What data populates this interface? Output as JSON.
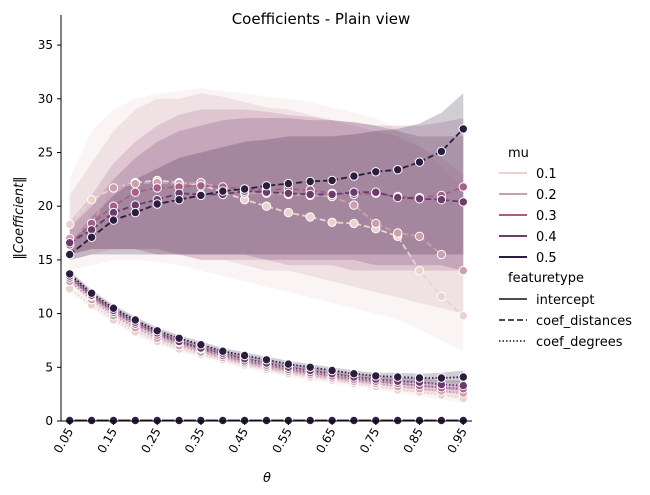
{
  "chart_data": {
    "type": "line",
    "title": "Coefficients - Plain view",
    "xlabel": "θ",
    "ylabel": "‖Coefficient‖",
    "x": [
      0.05,
      0.1,
      0.15,
      0.2,
      0.25,
      0.3,
      0.35,
      0.4,
      0.45,
      0.5,
      0.55,
      0.6,
      0.65,
      0.7,
      0.75,
      0.8,
      0.85,
      0.9,
      0.95
    ],
    "xticks": [
      "0.05",
      "0.15",
      "0.25",
      "0.35",
      "0.45",
      "0.55",
      "0.65",
      "0.75",
      "0.85",
      "0.95"
    ],
    "ylim": [
      0,
      37.8
    ],
    "yticks": [
      "0",
      "5",
      "10",
      "15",
      "20",
      "25",
      "30",
      "35"
    ],
    "grid": false,
    "legend": {
      "position": "right",
      "hue_title": "mu",
      "hue_labels": [
        "0.1",
        "0.2",
        "0.3",
        "0.4",
        "0.5"
      ],
      "hue_colors": [
        "#ead3ce",
        "#cc9fae",
        "#a65f87",
        "#6c3b6e",
        "#2c1d40"
      ],
      "style_title": "featuretype",
      "style_labels": [
        "intercept",
        "coef_distances",
        "coef_degrees"
      ]
    },
    "series": [
      {
        "mu": "0.1",
        "feature": "coef_distances",
        "values": [
          18.3,
          20.6,
          21.7,
          22.2,
          22.4,
          22.2,
          22.0,
          21.3,
          20.6,
          20.0,
          19.4,
          19.0,
          18.5,
          18.4,
          17.9,
          17.2,
          14.0,
          11.6,
          9.8
        ],
        "ci_low": [
          14.0,
          14.5,
          15.0,
          15.0,
          14.8,
          14.5,
          14.0,
          13.5,
          13.0,
          12.5,
          12.0,
          11.5,
          11.0,
          10.5,
          10.0,
          9.5,
          8.5,
          7.5,
          6.5
        ],
        "ci_high": [
          22.5,
          27.0,
          29.0,
          30.0,
          30.5,
          30.7,
          31.0,
          30.7,
          30.5,
          30.2,
          30.0,
          29.7,
          29.2,
          28.7,
          28.2,
          27.2,
          25.7,
          23.7,
          21.7
        ]
      },
      {
        "mu": "0.2",
        "feature": "coef_distances",
        "values": [
          17.0,
          18.4,
          21.7,
          22.1,
          22.2,
          22.1,
          22.2,
          21.7,
          21.2,
          21.2,
          21.1,
          21.0,
          20.9,
          20.1,
          18.4,
          17.5,
          17.2,
          15.5,
          14.0
        ],
        "ci_low": [
          15.0,
          15.5,
          16.0,
          16.0,
          15.5,
          15.5,
          15.0,
          15.0,
          14.5,
          14.0,
          14.0,
          13.5,
          13.0,
          12.5,
          12.0,
          11.5,
          11.0,
          10.5,
          10.0
        ],
        "ci_high": [
          21.0,
          24.0,
          27.0,
          29.0,
          30.0,
          30.0,
          30.5,
          30.2,
          29.7,
          29.2,
          29.0,
          28.5,
          28.0,
          27.5,
          27.0,
          26.5,
          25.5,
          24.5,
          23.0
        ]
      },
      {
        "mu": "0.3",
        "feature": "coef_distances",
        "values": [
          16.4,
          18.4,
          20.0,
          21.3,
          21.7,
          21.8,
          21.9,
          21.8,
          21.6,
          21.5,
          21.6,
          21.5,
          21.2,
          21.1,
          21.2,
          20.9,
          20.8,
          21.0,
          21.8
        ],
        "ci_low": [
          15.5,
          16.0,
          16.0,
          16.0,
          15.5,
          15.5,
          15.0,
          15.0,
          15.0,
          15.0,
          14.5,
          14.5,
          14.5,
          14.0,
          14.0,
          14.0,
          14.0,
          14.0,
          14.0
        ],
        "ci_high": [
          18.5,
          21.0,
          24.0,
          26.0,
          27.5,
          28.5,
          29.0,
          29.0,
          29.0,
          28.8,
          28.5,
          28.3,
          28.0,
          27.8,
          27.5,
          27.5,
          27.5,
          27.8,
          28.2
        ]
      },
      {
        "mu": "0.4",
        "feature": "coef_distances",
        "values": [
          16.6,
          17.8,
          19.4,
          20.1,
          20.6,
          21.2,
          21.1,
          21.1,
          21.4,
          21.3,
          21.2,
          21.1,
          21.1,
          21.3,
          21.3,
          20.8,
          20.7,
          20.6,
          20.4
        ],
        "ci_low": [
          15.5,
          16.0,
          16.0,
          16.0,
          16.0,
          15.5,
          15.5,
          15.5,
          15.5,
          15.0,
          15.0,
          15.0,
          15.0,
          15.0,
          14.5,
          14.5,
          14.5,
          14.5,
          14.0
        ],
        "ci_high": [
          18.0,
          20.0,
          22.5,
          24.5,
          26.0,
          27.0,
          27.5,
          28.0,
          28.2,
          28.2,
          28.2,
          28.0,
          28.0,
          27.8,
          27.5,
          27.0,
          26.5,
          26.5,
          26.5
        ]
      },
      {
        "mu": "0.5",
        "feature": "coef_distances",
        "values": [
          15.5,
          17.1,
          18.7,
          19.4,
          20.2,
          20.6,
          21.0,
          21.4,
          21.6,
          21.9,
          22.1,
          22.3,
          22.4,
          22.8,
          23.2,
          23.4,
          24.1,
          25.1,
          27.2
        ],
        "ci_low": [
          15.0,
          15.5,
          15.5,
          15.5,
          15.5,
          15.5,
          15.5,
          15.5,
          15.5,
          15.5,
          15.5,
          15.5,
          15.5,
          15.5,
          15.5,
          15.5,
          15.5,
          15.5,
          15.5
        ],
        "ci_high": [
          16.5,
          19.0,
          21.0,
          22.5,
          23.5,
          24.5,
          25.0,
          25.5,
          26.0,
          26.2,
          26.5,
          26.5,
          26.5,
          26.7,
          27.0,
          27.2,
          27.7,
          28.7,
          30.5
        ]
      },
      {
        "mu": "0.1",
        "feature": "coef_degrees",
        "values": [
          12.3,
          10.8,
          9.4,
          8.3,
          7.4,
          6.7,
          6.2,
          5.7,
          5.2,
          4.8,
          4.4,
          4.1,
          3.8,
          3.5,
          3.2,
          2.9,
          2.7,
          2.4,
          2.1
        ],
        "ci_low": [
          12.0,
          10.5,
          9.1,
          8.0,
          7.1,
          6.4,
          5.9,
          5.4,
          4.9,
          4.5,
          4.1,
          3.8,
          3.5,
          3.2,
          2.9,
          2.6,
          2.3,
          2.0,
          1.7
        ],
        "ci_high": [
          12.6,
          11.1,
          9.7,
          8.6,
          7.7,
          7.0,
          6.5,
          6.0,
          5.5,
          5.1,
          4.7,
          4.4,
          4.1,
          3.8,
          3.5,
          3.2,
          3.1,
          2.8,
          2.5
        ]
      },
      {
        "mu": "0.2",
        "feature": "coef_degrees",
        "values": [
          13.0,
          11.3,
          9.8,
          8.7,
          7.7,
          7.0,
          6.4,
          5.9,
          5.4,
          5.0,
          4.6,
          4.3,
          4.0,
          3.7,
          3.5,
          3.2,
          3.0,
          2.8,
          2.6
        ],
        "ci_low": [
          12.7,
          11.0,
          9.5,
          8.4,
          7.4,
          6.7,
          6.1,
          5.6,
          5.1,
          4.7,
          4.3,
          4.0,
          3.7,
          3.4,
          3.2,
          2.9,
          2.6,
          2.4,
          2.1
        ],
        "ci_high": [
          13.3,
          11.6,
          10.1,
          9.0,
          8.0,
          7.3,
          6.7,
          6.2,
          5.7,
          5.3,
          4.9,
          4.6,
          4.3,
          4.0,
          3.8,
          3.5,
          3.4,
          3.2,
          3.1
        ]
      },
      {
        "mu": "0.3",
        "feature": "coef_degrees",
        "values": [
          13.3,
          11.6,
          10.1,
          9.0,
          8.0,
          7.3,
          6.7,
          6.1,
          5.6,
          5.2,
          4.8,
          4.5,
          4.2,
          3.9,
          3.7,
          3.5,
          3.3,
          3.1,
          3.0
        ],
        "ci_low": [
          13.0,
          11.3,
          9.8,
          8.7,
          7.7,
          7.0,
          6.4,
          5.8,
          5.3,
          4.9,
          4.5,
          4.2,
          3.9,
          3.6,
          3.4,
          3.2,
          2.9,
          2.7,
          2.5
        ],
        "ci_high": [
          13.6,
          11.9,
          10.4,
          9.3,
          8.3,
          7.6,
          7.0,
          6.4,
          5.9,
          5.5,
          5.1,
          4.8,
          4.5,
          4.2,
          4.0,
          3.8,
          3.7,
          3.5,
          3.5
        ]
      },
      {
        "mu": "0.4",
        "feature": "coef_degrees",
        "values": [
          13.5,
          11.7,
          10.3,
          9.2,
          8.2,
          7.4,
          6.8,
          6.3,
          5.8,
          5.4,
          5.0,
          4.7,
          4.4,
          4.1,
          3.9,
          3.7,
          3.6,
          3.4,
          3.3
        ],
        "ci_low": [
          13.2,
          11.4,
          10.0,
          8.9,
          7.9,
          7.1,
          6.5,
          6.0,
          5.5,
          5.1,
          4.7,
          4.4,
          4.1,
          3.8,
          3.6,
          3.4,
          3.2,
          3.0,
          2.8
        ],
        "ci_high": [
          13.8,
          12.0,
          10.6,
          9.5,
          8.5,
          7.7,
          7.1,
          6.6,
          6.1,
          5.7,
          5.3,
          5.0,
          4.7,
          4.4,
          4.2,
          4.0,
          4.0,
          3.8,
          3.8
        ]
      },
      {
        "mu": "0.5",
        "feature": "coef_degrees",
        "values": [
          13.7,
          11.9,
          10.5,
          9.4,
          8.4,
          7.7,
          7.1,
          6.5,
          6.1,
          5.7,
          5.3,
          5.0,
          4.7,
          4.4,
          4.2,
          4.1,
          4.0,
          4.0,
          4.1
        ],
        "ci_low": [
          13.4,
          11.6,
          10.2,
          9.1,
          8.1,
          7.4,
          6.8,
          6.2,
          5.8,
          5.4,
          5.0,
          4.7,
          4.4,
          4.1,
          3.9,
          3.7,
          3.6,
          3.5,
          3.5
        ],
        "ci_high": [
          14.0,
          12.2,
          10.8,
          9.7,
          8.7,
          8.0,
          7.4,
          6.8,
          6.4,
          6.0,
          5.6,
          5.3,
          5.0,
          4.7,
          4.5,
          4.5,
          4.4,
          4.5,
          4.7
        ]
      },
      {
        "mu": "0.1",
        "feature": "intercept",
        "values": [
          0.05,
          0.05,
          0.05,
          0.05,
          0.05,
          0.05,
          0.05,
          0.05,
          0.05,
          0.05,
          0.05,
          0.05,
          0.05,
          0.05,
          0.05,
          0.05,
          0.05,
          0.05,
          0.05
        ]
      },
      {
        "mu": "0.2",
        "feature": "intercept",
        "values": [
          0.05,
          0.05,
          0.05,
          0.05,
          0.05,
          0.05,
          0.05,
          0.05,
          0.05,
          0.05,
          0.05,
          0.05,
          0.05,
          0.05,
          0.05,
          0.05,
          0.05,
          0.05,
          0.05
        ]
      },
      {
        "mu": "0.3",
        "feature": "intercept",
        "values": [
          0.05,
          0.05,
          0.05,
          0.05,
          0.05,
          0.05,
          0.05,
          0.05,
          0.05,
          0.05,
          0.05,
          0.05,
          0.05,
          0.05,
          0.05,
          0.05,
          0.05,
          0.05,
          0.05
        ]
      },
      {
        "mu": "0.4",
        "feature": "intercept",
        "values": [
          0.05,
          0.05,
          0.05,
          0.05,
          0.05,
          0.05,
          0.05,
          0.05,
          0.05,
          0.05,
          0.05,
          0.05,
          0.05,
          0.05,
          0.05,
          0.05,
          0.05,
          0.05,
          0.05
        ]
      },
      {
        "mu": "0.5",
        "feature": "intercept",
        "values": [
          0.05,
          0.05,
          0.05,
          0.05,
          0.05,
          0.05,
          0.05,
          0.05,
          0.05,
          0.05,
          0.05,
          0.05,
          0.05,
          0.05,
          0.05,
          0.05,
          0.05,
          0.05,
          0.05
        ]
      }
    ]
  }
}
